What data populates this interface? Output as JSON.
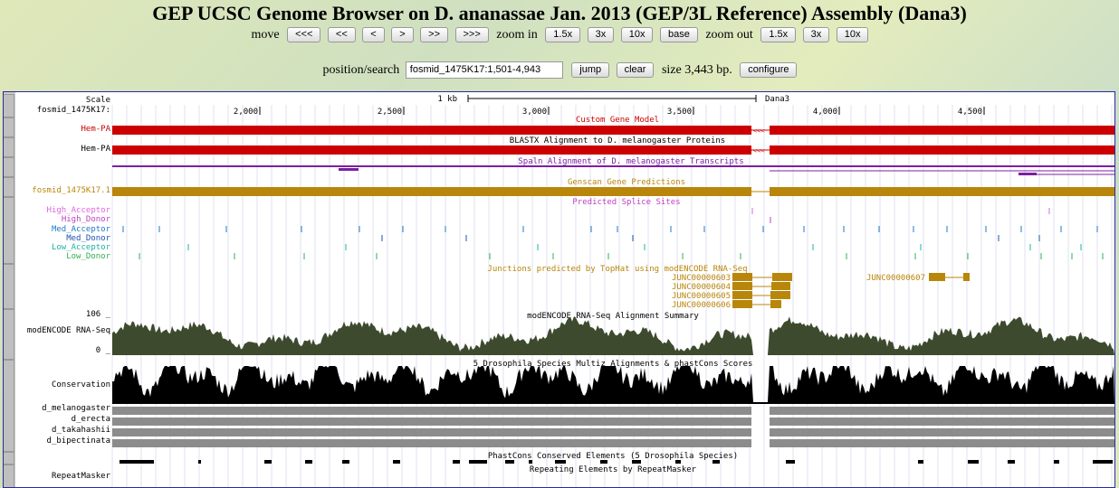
{
  "header": {
    "title": "GEP UCSC Genome Browser on D. ananassae Jan. 2013 (GEP/3L Reference) Assembly (Dana3)"
  },
  "nav": {
    "move_label": "move",
    "move_buttons": [
      "<<<",
      "<<",
      "<",
      ">",
      ">>",
      ">>>"
    ],
    "zoom_in_label": "zoom in",
    "zoom_in_buttons": [
      "1.5x",
      "3x",
      "10x",
      "base"
    ],
    "zoom_out_label": "zoom out",
    "zoom_out_buttons": [
      "1.5x",
      "3x",
      "10x"
    ]
  },
  "search": {
    "label": "position/search",
    "value": "fosmid_1475K17:1,501-4,943",
    "jump": "jump",
    "clear": "clear",
    "size_text": "size 3,443 bp.",
    "configure": "configure"
  },
  "ruler": {
    "scale_label": "Scale",
    "chrom_label": "fosmid_1475K17:",
    "scale_bar_text": "1 kb",
    "assembly": "Dana3",
    "ticks": [
      "2,000",
      "2,500",
      "3,000",
      "3,500",
      "4,000",
      "4,500"
    ]
  },
  "tracks": {
    "custom_gene": {
      "title": "Custom Gene Model",
      "item": "Hem-PA",
      "color": "#cc0000"
    },
    "blastx": {
      "title": "BLASTX Alignment to D. melanogaster Proteins",
      "item": "Hem-PA",
      "color": "#cc0000"
    },
    "spaln": {
      "title": "Spaln Alignment of D. melanogaster Transcripts",
      "color": "#7b1fa2"
    },
    "genscan": {
      "title": "Genscan Gene Predictions",
      "item": "fosmid_1475K17.1",
      "color": "#b8860b"
    },
    "splice": {
      "title": "Predicted Splice Sites",
      "labels": [
        {
          "text": "High_Acceptor",
          "color": "#e066e0"
        },
        {
          "text": "High_Donor",
          "color": "#c040c0"
        },
        {
          "text": "Med_Acceptor",
          "color": "#1f78c8"
        },
        {
          "text": "Med_Donor",
          "color": "#1f50b0"
        },
        {
          "text": "Low_Acceptor",
          "color": "#20b0a0"
        },
        {
          "text": "Low_Donor",
          "color": "#30b050"
        }
      ]
    },
    "tophat": {
      "title": "Junctions predicted by TopHat using modENCODE RNA-Seq",
      "items": [
        "JUNC00000603",
        "JUNC00000604",
        "JUNC00000605",
        "JUNC00000606",
        "JUNC00000607"
      ],
      "color": "#b8860b"
    },
    "rnaseq": {
      "title": "modENCODE RNA-Seq Alignment Summary",
      "label": "modENCODE RNA-Seq",
      "max": "106 _",
      "min": "0 _"
    },
    "conservation": {
      "title": "5 Drosophila Species Multiz Alignments & phastCons Scores",
      "label": "Conservation",
      "species": [
        "d_melanogaster",
        "d_erecta",
        "d_takahashii",
        "d_bipectinata"
      ]
    },
    "phastcons": {
      "title": "PhastCons Conserved Elements (5 Drosophila Species)"
    },
    "repeatmasker": {
      "title": "Repeating Elements by RepeatMasker",
      "label": "RepeatMasker"
    }
  }
}
